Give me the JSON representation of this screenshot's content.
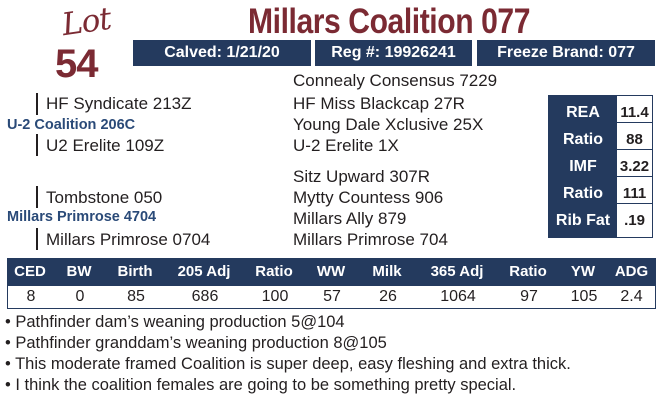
{
  "lot": {
    "word": "Lot",
    "number": "54"
  },
  "title": "Millars Coalition 077",
  "id_bar": {
    "calved": "Calved: 1/21/20",
    "reg": "Reg #: 19926241",
    "freeze": "Freeze Brand: 077"
  },
  "pedigree": {
    "sire": "U-2 Coalition 206C",
    "sire_sire": "HF Syndicate 213Z",
    "sire_dam": "U2 Erelite 109Z",
    "dam": "Millars Primrose 4704",
    "dam_sire": "Tombstone 050",
    "dam_dam": "Millars Primrose 0704",
    "ggp": [
      "Connealy Consensus 7229",
      "HF Miss Blackcap 27R",
      "Young Dale Xclusive 25X",
      "U-2 Erelite 1X",
      "Sitz Upward 307R",
      "Mytty Countess 906",
      "Millars Ally 879",
      "Millars Primrose 704"
    ]
  },
  "ultrasound": [
    {
      "label": "REA",
      "value": "11.4"
    },
    {
      "label": "Ratio",
      "value": "88"
    },
    {
      "label": "IMF",
      "value": "3.22"
    },
    {
      "label": "Ratio",
      "value": "111"
    },
    {
      "label": "Rib Fat",
      "value": ".19"
    }
  ],
  "performance": {
    "headers": [
      "CED",
      "BW",
      "Birth",
      "205 Adj",
      "Ratio",
      "WW",
      "Milk",
      "365 Adj",
      "Ratio",
      "YW",
      "ADG"
    ],
    "values": [
      "8",
      "0",
      "85",
      "686",
      "100",
      "57",
      "26",
      "1064",
      "97",
      "105",
      "2.4"
    ]
  },
  "notes": [
    "• Pathfinder dam’s weaning production 5@104",
    "• Pathfinder granddam’s weaning production 8@105",
    "• This moderate framed Coalition is super deep, easy fleshing and extra thick.",
    "• I think the coalition females are going to be something pretty special."
  ]
}
